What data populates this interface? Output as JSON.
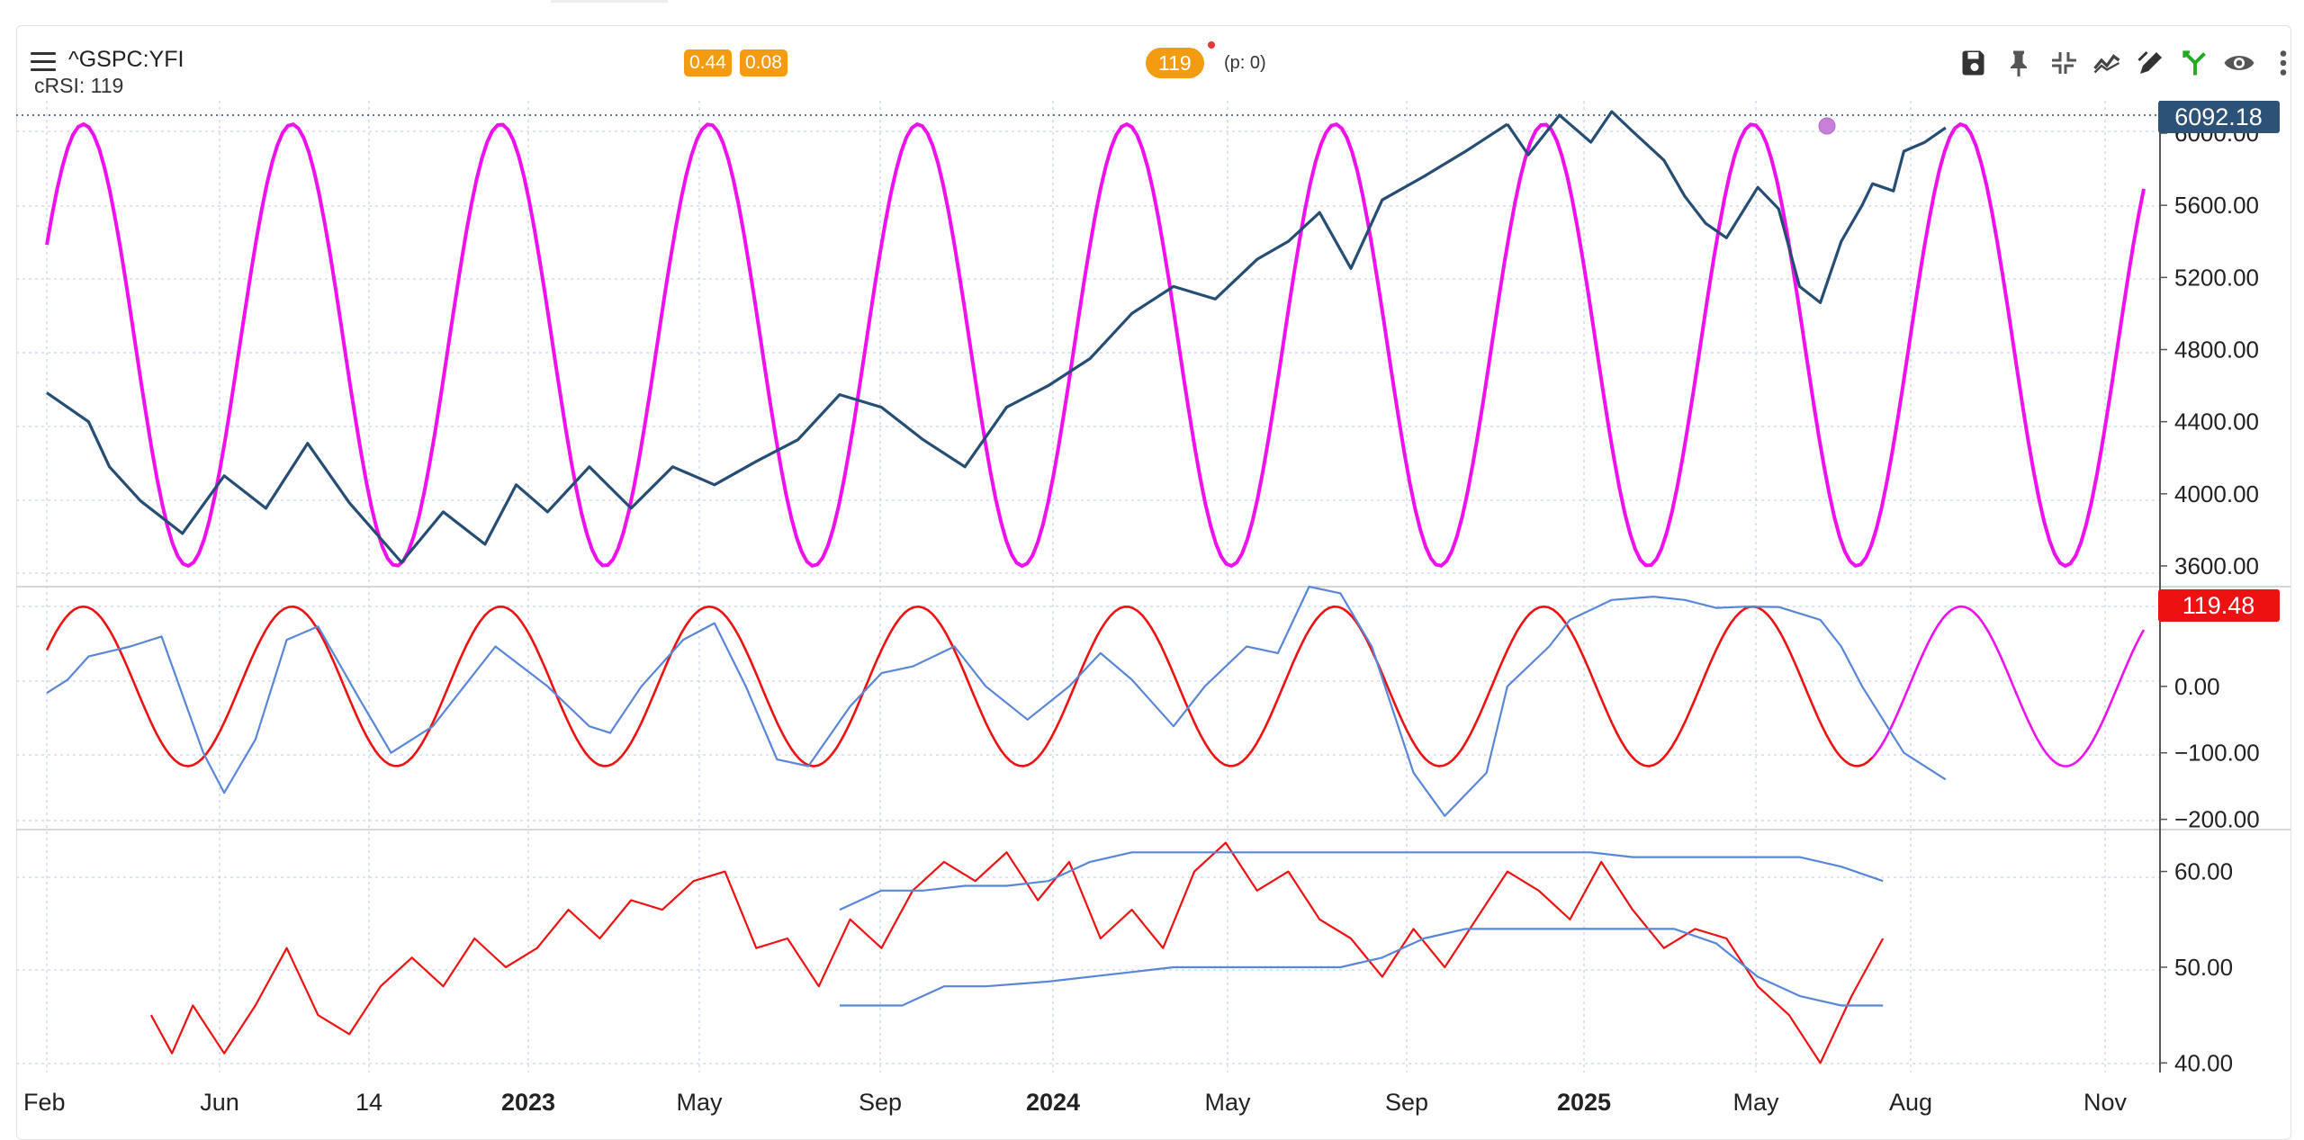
{
  "header": {
    "symbol": "^GSPC:YFI",
    "indicator_label": "cRSI: 119",
    "badge_a": "0.44",
    "badge_b": "0.08",
    "cycle_pill": "119",
    "p_label": "(p: 0)"
  },
  "toolbar": {
    "icons": [
      "save-icon",
      "pin-icon",
      "collapse-icon",
      "trend-icon",
      "draw-icon",
      "fork-icon",
      "eye-icon",
      "more-icon"
    ]
  },
  "colors": {
    "price": "#264d73",
    "cycle_sine": "#ee11ee",
    "red_line": "#ee1111",
    "blue_line": "#5a86d8",
    "price_badge": "#2d5278",
    "crsi_badge": "#ee1111",
    "orange": "#f39c12",
    "grid": "#c6d6ea"
  },
  "chart_data": {
    "type": "line",
    "date_ticks": [
      {
        "label": "Feb",
        "bold": false
      },
      {
        "label": "Jun",
        "bold": false
      },
      {
        "label": "14",
        "bold": false
      },
      {
        "label": "2023",
        "bold": true
      },
      {
        "label": "May",
        "bold": false
      },
      {
        "label": "Sep",
        "bold": false
      },
      {
        "label": "2024",
        "bold": true
      },
      {
        "label": "May",
        "bold": false
      },
      {
        "label": "Sep",
        "bold": false
      },
      {
        "label": "2025",
        "bold": true
      },
      {
        "label": "May",
        "bold": false
      },
      {
        "label": "Aug",
        "bold": false
      },
      {
        "label": "Nov",
        "bold": false
      }
    ],
    "panels": [
      {
        "name": "price",
        "y_ticks": [
          "6000.00",
          "5600.00",
          "5200.00",
          "4800.00",
          "4400.00",
          "4000.00",
          "3600.00"
        ],
        "ylim": [
          3560,
          6110
        ],
        "last_value_label": "6092.18",
        "series": [
          {
            "role": "price",
            "x": [
              0,
              4,
              6,
              9,
              13,
              17,
              21,
              25,
              29,
              34,
              38,
              42,
              45,
              48,
              52,
              56,
              60,
              64,
              68,
              72,
              76,
              80,
              84,
              88,
              92,
              96,
              100,
              104,
              108,
              112,
              116,
              119,
              122,
              125,
              128,
              132,
              136,
              140
            ],
            "y": [
              4560,
              4400,
              4150,
              3960,
              3780,
              4100,
              3920,
              4280,
              3950,
              3620,
              3900,
              3720,
              4050,
              3900,
              4150,
              3920,
              4150,
              4050,
              4180,
              4300,
              4550,
              4480,
              4300,
              4150,
              4480,
              4600,
              4750,
              5000,
              5150,
              5080,
              5300,
              5400,
              5560,
              5250,
              5630,
              5760,
              5900,
              6050
            ]
          },
          {
            "role": "price",
            "x": [
              140,
              142,
              145,
              148,
              150,
              152,
              155,
              157,
              159,
              161,
              164,
              166,
              168,
              170,
              172,
              174,
              175,
              177,
              178,
              180,
              182
            ],
            "y": [
              6050,
              5880,
              6100,
              5950,
              6120,
              6010,
              5850,
              5650,
              5500,
              5420,
              5700,
              5580,
              5150,
              5060,
              5400,
              5600,
              5720,
              5680,
              5900,
              5950,
              6030
            ]
          },
          {
            "role": "cycle",
            "period": 20,
            "min": 3600,
            "max": 6050,
            "x_start": 0,
            "x_end": 201,
            "peak_at": 3.5
          }
        ]
      },
      {
        "name": "crsi",
        "y_ticks": [
          "0.00",
          "-100.00",
          "-200.00"
        ],
        "ylim": [
          -210,
          150
        ],
        "last_value_label": "119.48",
        "series": [
          {
            "role": "blue",
            "x": [
              0,
              2,
              4,
              8,
              11,
              15,
              17,
              20,
              23,
              26,
              30,
              33,
              37,
              40,
              43,
              48,
              52,
              54,
              57,
              61,
              64,
              67,
              70,
              73,
              77,
              80,
              83,
              87,
              90,
              94,
              98,
              101,
              104,
              108,
              111,
              115,
              118,
              121,
              124,
              127,
              131,
              134,
              138,
              140,
              144,
              146,
              150,
              154,
              157,
              160,
              163,
              166,
              170,
              172,
              174,
              178,
              182
            ],
            "y": [
              -10,
              10,
              45,
              60,
              75,
              -100,
              -160,
              -80,
              70,
              90,
              -20,
              -100,
              -60,
              0,
              60,
              0,
              -60,
              -70,
              0,
              70,
              95,
              0,
              -110,
              -120,
              -30,
              20,
              30,
              60,
              0,
              -50,
              0,
              50,
              10,
              -60,
              0,
              60,
              50,
              150,
              140,
              60,
              -130,
              -195,
              -130,
              0,
              60,
              100,
              130,
              135,
              130,
              118,
              120,
              119.48,
              100,
              60,
              0,
              -100,
              -140
            ]
          },
          {
            "role": "red_sine",
            "period": 20,
            "min": -120,
            "max": 120,
            "x_start": 0,
            "x_end": 175,
            "peak_at": 3.5
          },
          {
            "role": "magenta_sine",
            "period": 20,
            "min": -120,
            "max": 120,
            "x_start": 175,
            "x_end": 201,
            "peak_at": 3.5
          }
        ]
      },
      {
        "name": "lower",
        "y_ticks": [
          "60.00",
          "50.00",
          "40.00"
        ],
        "ylim": [
          39,
          64
        ],
        "series": [
          {
            "role": "red",
            "x": [
              10,
              12,
              14,
              17,
              20,
              23,
              26,
              29,
              32,
              35,
              38,
              41,
              44,
              47,
              50,
              53,
              56,
              59,
              62,
              65,
              68,
              71,
              74,
              77,
              80,
              83,
              86,
              89,
              92,
              95,
              98,
              101,
              104,
              107,
              110,
              113,
              116,
              119,
              122,
              125,
              128,
              131,
              134,
              137,
              140,
              143,
              146,
              149,
              152,
              155,
              158,
              161,
              164,
              167,
              170,
              173,
              176
            ],
            "y": [
              45,
              41,
              46,
              41,
              46,
              52,
              45,
              43,
              48,
              51,
              48,
              53,
              50,
              52,
              56,
              53,
              57,
              56,
              59,
              60,
              52,
              53,
              48,
              55,
              52,
              58,
              61,
              59,
              62,
              57,
              61,
              53,
              56,
              52,
              60,
              63,
              58,
              60,
              55,
              53,
              49,
              54,
              50,
              55,
              60,
              58,
              55,
              61,
              56,
              52,
              54,
              53,
              48,
              45,
              40,
              47,
              53
            ]
          },
          {
            "role": "blue_upper",
            "x": [
              76,
              80,
              84,
              88,
              92,
              96,
              100,
              104,
              108,
              112,
              116,
              120,
              124,
              128,
              132,
              136,
              140,
              144,
              148,
              152,
              156,
              160,
              164,
              168,
              172,
              176
            ],
            "y": [
              56,
              58,
              58,
              58.5,
              58.5,
              59,
              61,
              62,
              62,
              62,
              62,
              62,
              62,
              62,
              62,
              62,
              62,
              62,
              62,
              61.5,
              61.5,
              61.5,
              61.5,
              61.5,
              60.5,
              59
            ]
          },
          {
            "role": "blue_lower",
            "x": [
              76,
              82,
              86,
              90,
              96,
              104,
              108,
              112,
              116,
              120,
              124,
              128,
              132,
              136,
              140,
              144,
              148,
              152,
              156,
              160,
              164,
              168,
              172,
              176
            ],
            "y": [
              46,
              46,
              48,
              48,
              48.5,
              49.5,
              50,
              50,
              50,
              50,
              50,
              51,
              53,
              54,
              54,
              54,
              54,
              54,
              54,
              52.5,
              49,
              47,
              46,
              46
            ]
          }
        ]
      }
    ],
    "xlim": [
      0,
      201
    ]
  }
}
